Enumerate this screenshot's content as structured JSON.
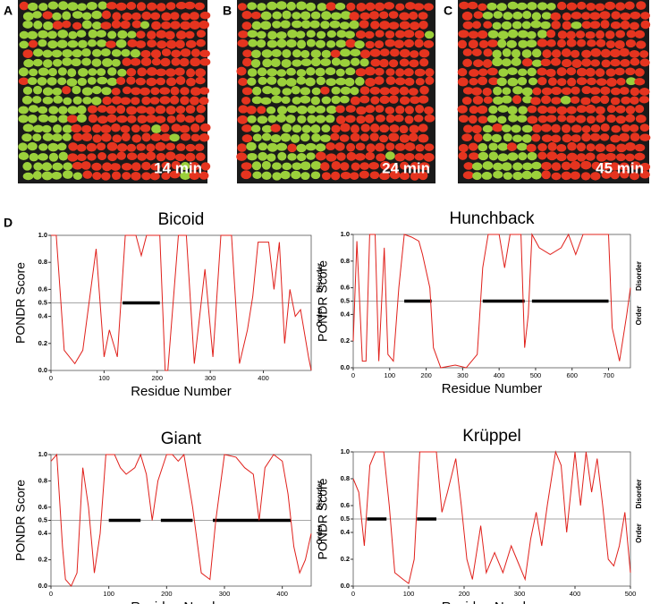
{
  "panels": [
    {
      "label": "A",
      "time": "14 min"
    },
    {
      "label": "B",
      "time": "24 min"
    },
    {
      "label": "C",
      "time": "45 min"
    }
  ],
  "figure_label": "D",
  "chart_data": [
    {
      "type": "line",
      "title": "Bicoid",
      "x_label": "Residue Number",
      "y_label": "PONDR Score",
      "disorder_label": "Disorder",
      "order_label": "Order",
      "color": "#e0201b",
      "x": [
        0,
        10,
        25,
        45,
        60,
        85,
        100,
        110,
        125,
        140,
        160,
        170,
        180,
        205,
        215,
        220,
        240,
        255,
        270,
        290,
        305,
        320,
        340,
        355,
        370,
        380,
        390,
        410,
        420,
        430,
        440,
        450,
        460,
        470,
        485,
        490
      ],
      "values": [
        1,
        1,
        0.15,
        0.05,
        0.15,
        0.9,
        0.1,
        0.3,
        0.1,
        1,
        1,
        0.85,
        1,
        1,
        0,
        0,
        1,
        1,
        0.05,
        0.75,
        0.1,
        1,
        1,
        0.05,
        0.3,
        0.55,
        0.95,
        0.95,
        0.6,
        0.95,
        0.2,
        0.6,
        0.4,
        0.45,
        0.1,
        0
      ],
      "xlim": [
        0,
        490
      ],
      "ylim": [
        0,
        1
      ],
      "xticks": [
        0,
        100,
        200,
        300,
        400
      ],
      "yticks": [
        {
          "value": 0,
          "label": "0.0"
        },
        0.2,
        0.4,
        0.5,
        0.6,
        0.8,
        {
          "value": 1,
          "label": "1.0"
        }
      ],
      "threshold": 0.5,
      "segments": [
        [
          135,
          205
        ]
      ]
    },
    {
      "type": "line",
      "title": "Hunchback",
      "x_label": "Residue Number",
      "y_label": "PONDR Score",
      "disorder_label": "Disorder",
      "order_label": "Order",
      "color": "#e0201b",
      "x": [
        0,
        10,
        25,
        35,
        45,
        60,
        70,
        85,
        95,
        110,
        125,
        140,
        160,
        180,
        190,
        210,
        220,
        240,
        280,
        310,
        340,
        355,
        370,
        400,
        415,
        430,
        460,
        470,
        480,
        490,
        510,
        540,
        570,
        590,
        610,
        630,
        700,
        710,
        730,
        750,
        760
      ],
      "values": [
        0.2,
        0.95,
        0.05,
        0.05,
        1,
        1,
        0.05,
        0.9,
        0.1,
        0.05,
        0.6,
        1,
        0.98,
        0.95,
        0.85,
        0.6,
        0.15,
        0,
        0.02,
        0,
        0.1,
        0.75,
        1,
        1,
        0.75,
        1,
        1,
        0.15,
        0.4,
        1,
        0.9,
        0.85,
        0.9,
        1,
        0.85,
        1,
        1,
        0.3,
        0.05,
        0.4,
        0.6
      ],
      "xlim": [
        0,
        760
      ],
      "ylim": [
        0,
        1
      ],
      "xticks": [
        0,
        100,
        200,
        300,
        400,
        500,
        600,
        700
      ],
      "yticks": [
        {
          "value": 0,
          "label": "0.0"
        },
        0.2,
        0.4,
        0.5,
        0.6,
        0.8,
        {
          "value": 1,
          "label": "1.0"
        }
      ],
      "threshold": 0.5,
      "segments": [
        [
          140,
          215
        ],
        [
          355,
          470
        ],
        [
          490,
          700
        ]
      ]
    },
    {
      "type": "line",
      "title": "Giant",
      "x_label": "Residue Number",
      "y_label": "PONDR Score",
      "disorder_label": "Disorder",
      "order_label": "Order",
      "color": "#e0201b",
      "x": [
        0,
        10,
        20,
        25,
        35,
        45,
        55,
        65,
        75,
        85,
        95,
        110,
        120,
        130,
        145,
        155,
        165,
        175,
        185,
        200,
        210,
        220,
        230,
        245,
        260,
        275,
        285,
        300,
        320,
        335,
        350,
        360,
        370,
        385,
        400,
        410,
        420,
        430,
        440,
        450
      ],
      "values": [
        0.95,
        1,
        0.3,
        0.05,
        0,
        0.1,
        0.9,
        0.6,
        0.1,
        0.4,
        1,
        1,
        0.9,
        0.85,
        0.9,
        1,
        0.85,
        0.5,
        0.8,
        1,
        1,
        0.95,
        1,
        0.6,
        0.1,
        0.05,
        0.5,
        1,
        0.98,
        0.9,
        0.85,
        0.5,
        0.9,
        1,
        0.95,
        0.7,
        0.3,
        0.1,
        0.2,
        0.4
      ],
      "xlim": [
        0,
        450
      ],
      "ylim": [
        0,
        1
      ],
      "xticks": [
        0,
        100,
        200,
        300,
        400
      ],
      "yticks": [
        {
          "value": 0,
          "label": "0.0"
        },
        0.2,
        0.4,
        0.5,
        0.6,
        0.8,
        {
          "value": 1,
          "label": "1.0"
        }
      ],
      "threshold": 0.5,
      "segments": [
        [
          100,
          155
        ],
        [
          190,
          245
        ],
        [
          280,
          415
        ]
      ]
    },
    {
      "type": "line",
      "title": "Krüppel",
      "x_label": "Residue Number",
      "y_label": "PONDR Score",
      "disorder_label": "Disorder",
      "order_label": "Order",
      "color": "#e0201b",
      "x": [
        0,
        10,
        20,
        30,
        40,
        55,
        65,
        75,
        90,
        100,
        110,
        120,
        150,
        160,
        170,
        185,
        195,
        205,
        215,
        230,
        240,
        255,
        270,
        285,
        300,
        310,
        320,
        330,
        340,
        350,
        365,
        375,
        385,
        400,
        410,
        420,
        430,
        440,
        450,
        460,
        470,
        480,
        490,
        500
      ],
      "values": [
        0.8,
        0.7,
        0.3,
        0.9,
        1,
        1,
        0.6,
        0.1,
        0.05,
        0.02,
        0.2,
        1,
        1,
        0.55,
        0.7,
        0.95,
        0.6,
        0.2,
        0.05,
        0.45,
        0.1,
        0.25,
        0.1,
        0.3,
        0.15,
        0.05,
        0.35,
        0.55,
        0.3,
        0.6,
        1,
        0.9,
        0.4,
        1,
        0.6,
        1,
        0.7,
        0.95,
        0.6,
        0.2,
        0.15,
        0.3,
        0.55,
        0.1
      ],
      "xlim": [
        0,
        500
      ],
      "ylim": [
        0,
        1
      ],
      "xticks": [
        0,
        100,
        200,
        300,
        400,
        500
      ],
      "yticks": [
        {
          "value": 0,
          "label": "0.0"
        },
        0.2,
        0.4,
        0.5,
        0.6,
        0.8,
        {
          "value": 1,
          "label": "1.0"
        }
      ],
      "threshold": 0.5,
      "segments": [
        [
          25,
          60
        ],
        [
          115,
          150
        ]
      ]
    }
  ]
}
